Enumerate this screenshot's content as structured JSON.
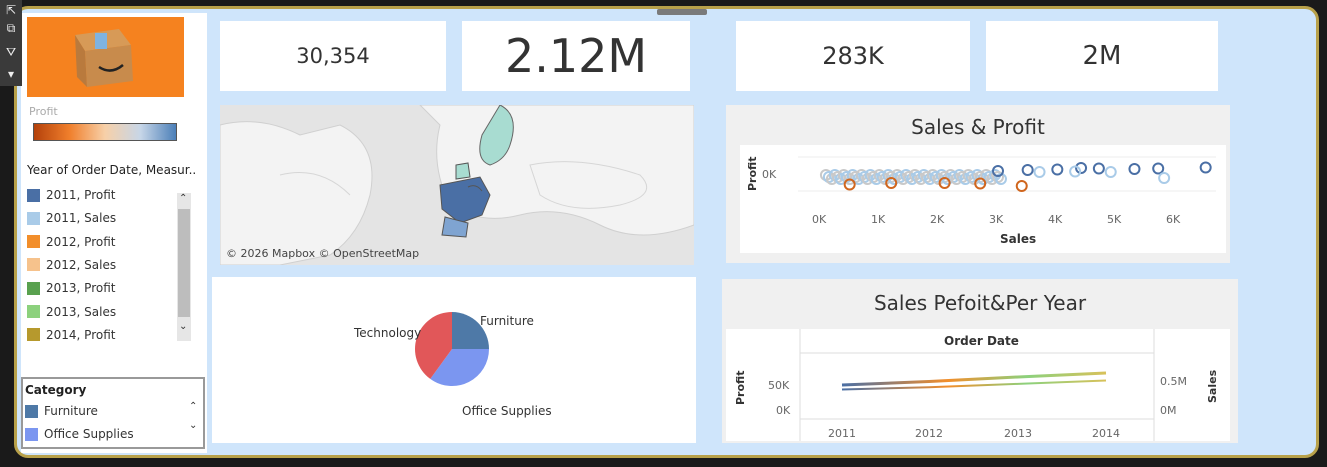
{
  "kpis": {
    "orders": "30,354",
    "sales": "2.12M",
    "profit": "283K",
    "quantity": "2M"
  },
  "sidebar": {
    "logo_icon": "amazon-box-logo",
    "profit_label": "Profit",
    "year_legend_title": "Year of Order Date, Measur..",
    "year_legend": [
      {
        "label": "2011, Profit",
        "color": "#4a6fa5"
      },
      {
        "label": "2011, Sales",
        "color": "#a9cbe8"
      },
      {
        "label": "2012, Profit",
        "color": "#f28e2b"
      },
      {
        "label": "2012, Sales",
        "color": "#f6c28c"
      },
      {
        "label": "2013, Profit",
        "color": "#59a14f"
      },
      {
        "label": "2013, Sales",
        "color": "#8cd17d"
      },
      {
        "label": "2014, Profit",
        "color": "#b6992d"
      }
    ],
    "category_title": "Category",
    "category_legend": [
      {
        "label": "Furniture",
        "color": "#4e79a7"
      },
      {
        "label": "Office Supplies",
        "color": "#7b96f0"
      }
    ]
  },
  "map": {
    "attribution": "© 2026 Mapbox © OpenStreetMap"
  },
  "pie": {
    "labels": {
      "technology": "Technology",
      "furniture": "Furniture",
      "office": "Office Supplies"
    }
  },
  "scatter": {
    "title": "Sales & Profit",
    "ylabel": "Profit",
    "xlabel": "Sales",
    "ytick": "0K",
    "xticks": [
      "0K",
      "1K",
      "2K",
      "3K",
      "4K",
      "5K",
      "6K"
    ]
  },
  "line": {
    "title": "Sales Pefoit&Per Year",
    "top_label": "Order Date",
    "left_label": "Profit",
    "right_label": "Sales",
    "left_ticks": [
      "50K",
      "0K"
    ],
    "right_ticks": [
      "0.5M",
      "0M"
    ],
    "years": [
      "2011",
      "2012",
      "2013",
      "2014"
    ]
  },
  "chart_data": [
    {
      "type": "scatter",
      "title": "Sales & Profit",
      "xlabel": "Sales",
      "ylabel": "Profit",
      "xlim": [
        0,
        6600
      ],
      "series": [
        {
          "name": "Profit",
          "points": [
            [
              4000,
              150
            ],
            [
              4400,
              180
            ],
            [
              4700,
              170
            ],
            [
              5300,
              160
            ],
            [
              5700,
              170
            ],
            [
              6500,
              190
            ],
            [
              3000,
              120
            ],
            [
              3500,
              140
            ]
          ]
        },
        {
          "name": "Sales",
          "points": [
            [
              3700,
              100
            ],
            [
              4300,
              110
            ],
            [
              4900,
              100
            ],
            [
              5800,
              -20
            ]
          ]
        },
        {
          "name": "Profit",
          "points": [
            [
              500,
              -150
            ],
            [
              1200,
              -120
            ],
            [
              2100,
              -120
            ],
            [
              2700,
              -130
            ],
            [
              3400,
              -180
            ]
          ]
        }
      ]
    },
    {
      "type": "pie",
      "categories": [
        "Furniture",
        "Office Supplies",
        "Technology"
      ],
      "values": [
        25,
        35,
        40
      ]
    },
    {
      "type": "line",
      "title": "Sales Pefoit&Per Year",
      "x": [
        "2011",
        "2012",
        "2013",
        "2014"
      ],
      "series": [
        {
          "name": "Profit",
          "values": [
            56000,
            63000,
            72000,
            80000
          ]
        },
        {
          "name": "Sales",
          "values": [
            0.42,
            0.46,
            0.52,
            0.58
          ]
        }
      ]
    }
  ]
}
